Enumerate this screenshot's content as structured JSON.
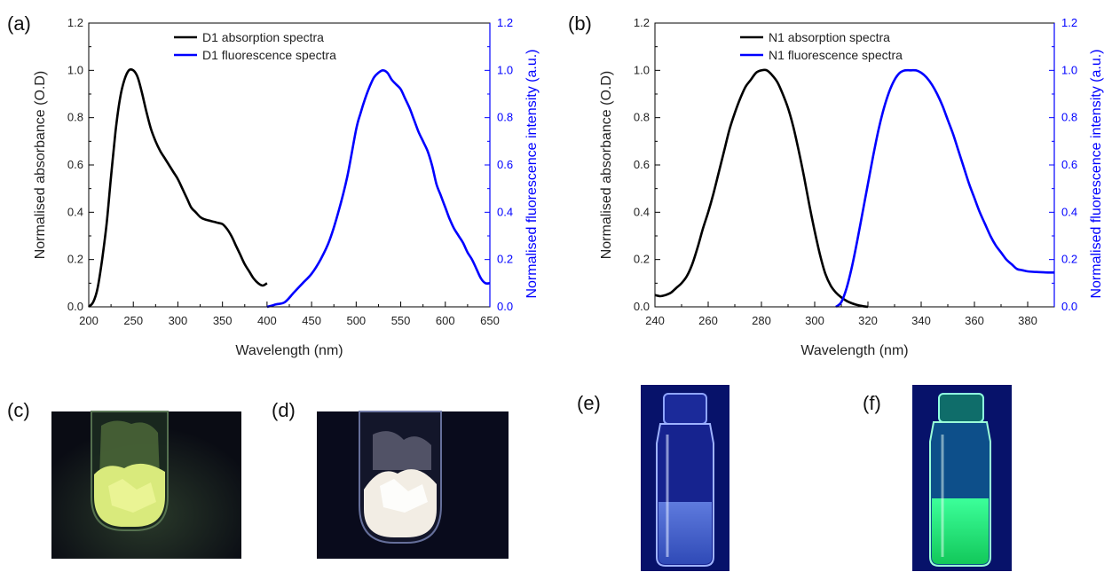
{
  "chart_data": [
    {
      "panel": "(a)",
      "type": "line",
      "xlabel": "Wavelength (nm)",
      "ylabel_left": "Normalised absorbance (O.D)",
      "ylabel_right": "Normalised fluorescence intensity (a.u.)",
      "xlim": [
        200,
        650
      ],
      "ylim": [
        0,
        1.2
      ],
      "xticks": [
        "200",
        "250",
        "300",
        "350",
        "400",
        "450",
        "500",
        "550",
        "600",
        "650"
      ],
      "yticks": [
        "0.0",
        "0.2",
        "0.4",
        "0.6",
        "0.8",
        "1.0",
        "1.2"
      ],
      "grid": false,
      "legend_position": "top-center",
      "series": [
        {
          "name": "D1 absorption spectra",
          "color": "#000000",
          "axis": "left",
          "x": [
            200,
            205,
            210,
            215,
            220,
            225,
            230,
            235,
            240,
            245,
            250,
            255,
            260,
            265,
            270,
            275,
            280,
            285,
            290,
            295,
            300,
            305,
            310,
            315,
            320,
            325,
            330,
            335,
            340,
            345,
            350,
            355,
            360,
            365,
            370,
            375,
            380,
            385,
            390,
            395,
            400
          ],
          "y": [
            0.0,
            0.02,
            0.08,
            0.2,
            0.35,
            0.55,
            0.74,
            0.88,
            0.96,
            1.0,
            1.0,
            0.97,
            0.9,
            0.82,
            0.75,
            0.7,
            0.66,
            0.63,
            0.6,
            0.57,
            0.54,
            0.5,
            0.46,
            0.42,
            0.4,
            0.38,
            0.37,
            0.365,
            0.36,
            0.355,
            0.35,
            0.33,
            0.3,
            0.26,
            0.22,
            0.18,
            0.15,
            0.12,
            0.1,
            0.09,
            0.1
          ]
        },
        {
          "name": "D1 fluorescence spectra",
          "color": "#0000ff",
          "axis": "right",
          "x": [
            400,
            410,
            420,
            430,
            440,
            450,
            460,
            470,
            480,
            490,
            500,
            505,
            510,
            515,
            520,
            525,
            530,
            535,
            540,
            545,
            550,
            555,
            560,
            565,
            570,
            575,
            580,
            585,
            590,
            595,
            600,
            605,
            610,
            615,
            620,
            625,
            630,
            635,
            640,
            645,
            650
          ],
          "y": [
            0.0,
            0.01,
            0.02,
            0.06,
            0.1,
            0.14,
            0.2,
            0.28,
            0.4,
            0.55,
            0.75,
            0.82,
            0.88,
            0.93,
            0.97,
            0.99,
            1.0,
            0.99,
            0.96,
            0.94,
            0.92,
            0.88,
            0.84,
            0.79,
            0.74,
            0.7,
            0.66,
            0.6,
            0.52,
            0.47,
            0.42,
            0.37,
            0.33,
            0.3,
            0.27,
            0.23,
            0.2,
            0.16,
            0.12,
            0.1,
            0.1
          ]
        }
      ]
    },
    {
      "panel": "(b)",
      "type": "line",
      "xlabel": "Wavelength (nm)",
      "ylabel_left": "Normalised absorbance (O.D)",
      "ylabel_right": "Normalised fluorescence intensity (a.u.)",
      "xlim": [
        240,
        390
      ],
      "ylim": [
        0,
        1.2
      ],
      "xticks": [
        "240",
        "260",
        "280",
        "300",
        "320",
        "340",
        "360",
        "380"
      ],
      "yticks": [
        "0.0",
        "0.2",
        "0.4",
        "0.6",
        "0.8",
        "1.0",
        "1.2"
      ],
      "grid": false,
      "legend_position": "top-center",
      "series": [
        {
          "name": "N1 absorption spectra",
          "color": "#000000",
          "axis": "left",
          "x": [
            240,
            242,
            244,
            246,
            248,
            250,
            252,
            254,
            256,
            258,
            260,
            262,
            264,
            266,
            268,
            270,
            272,
            274,
            276,
            278,
            280,
            282,
            284,
            286,
            288,
            290,
            292,
            294,
            296,
            298,
            300,
            302,
            304,
            306,
            308,
            310,
            312,
            314,
            316,
            318,
            320
          ],
          "y": [
            0.05,
            0.045,
            0.05,
            0.06,
            0.08,
            0.1,
            0.13,
            0.18,
            0.25,
            0.33,
            0.4,
            0.48,
            0.57,
            0.66,
            0.75,
            0.82,
            0.88,
            0.93,
            0.96,
            0.99,
            1.0,
            1.0,
            0.98,
            0.95,
            0.9,
            0.84,
            0.76,
            0.66,
            0.55,
            0.43,
            0.32,
            0.22,
            0.14,
            0.09,
            0.06,
            0.04,
            0.025,
            0.015,
            0.008,
            0.003,
            0.0
          ]
        },
        {
          "name": "N1 fluorescence spectra",
          "color": "#0000ff",
          "axis": "right",
          "x": [
            308,
            310,
            312,
            314,
            316,
            318,
            320,
            322,
            324,
            326,
            328,
            330,
            332,
            334,
            336,
            338,
            340,
            342,
            344,
            346,
            348,
            350,
            352,
            354,
            356,
            358,
            360,
            362,
            364,
            366,
            368,
            370,
            372,
            374,
            376,
            378,
            380,
            382,
            384,
            386,
            388,
            390
          ],
          "y": [
            0.0,
            0.02,
            0.08,
            0.17,
            0.28,
            0.4,
            0.52,
            0.64,
            0.75,
            0.84,
            0.91,
            0.96,
            0.99,
            1.0,
            1.0,
            1.0,
            0.99,
            0.97,
            0.94,
            0.9,
            0.85,
            0.79,
            0.73,
            0.66,
            0.59,
            0.52,
            0.46,
            0.4,
            0.35,
            0.3,
            0.26,
            0.23,
            0.2,
            0.18,
            0.16,
            0.155,
            0.15,
            0.148,
            0.147,
            0.146,
            0.145,
            0.145
          ]
        }
      ]
    }
  ],
  "photos": [
    {
      "label": "(c)",
      "icon": "tube-with-yellow-powder",
      "bg": "#0c0f18",
      "powder": "#e0ef86"
    },
    {
      "label": "(d)",
      "icon": "tube-with-white-powder",
      "bg": "#090b1c",
      "powder": "#f3eee6"
    },
    {
      "label": "(e)",
      "icon": "vial-clear-solution",
      "bg": "#07126a",
      "liquid": "#5f7fd0"
    },
    {
      "label": "(f)",
      "icon": "vial-green-fluorescent-solution",
      "bg": "#07126a",
      "liquid": "#27f07a"
    }
  ]
}
